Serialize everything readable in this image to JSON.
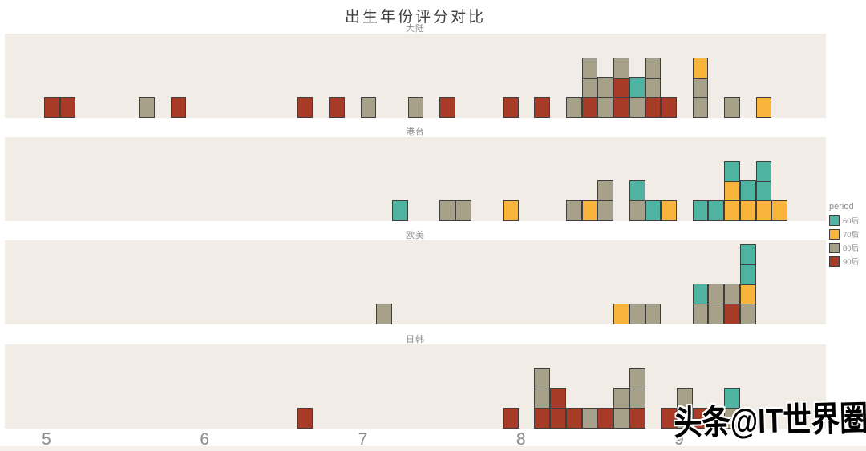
{
  "watermark": {
    "text": "头条@IT世界圈"
  },
  "chart_data": {
    "type": "faceted stacked-square dot-histogram",
    "title": "出生年份评分对比",
    "xlabel": "",
    "ylabel": "",
    "bin_width": 0.1,
    "x_axis": {
      "ticks": [
        5,
        6,
        7,
        8,
        9
      ],
      "range": [
        4.75,
        9.94
      ]
    },
    "grid": false,
    "legend": {
      "title": "period",
      "position": "right",
      "items": [
        {
          "label": "60后",
          "color": "#4eb3a0"
        },
        {
          "label": "70后",
          "color": "#f9b43c"
        },
        {
          "label": "80后",
          "color": "#a8a189"
        },
        {
          "label": "90后",
          "color": "#a83a28"
        }
      ]
    },
    "colors": {
      "panel_bg": "#f2ece7",
      "square_border": "#3f3f3f",
      "facet_label": "#8f8f8f",
      "tick_label": "#8c8c8c",
      "title": "#3f3f3f"
    },
    "facets": [
      {
        "label": "大陆",
        "columns": [
          {
            "x": 5.0,
            "stack": [
              "90后"
            ]
          },
          {
            "x": 5.1,
            "stack": [
              "90后"
            ]
          },
          {
            "x": 5.6,
            "stack": [
              "80后"
            ]
          },
          {
            "x": 5.8,
            "stack": [
              "90后"
            ]
          },
          {
            "x": 6.6,
            "stack": [
              "90后"
            ]
          },
          {
            "x": 6.8,
            "stack": [
              "90后"
            ]
          },
          {
            "x": 7.0,
            "stack": [
              "80后"
            ]
          },
          {
            "x": 7.3,
            "stack": [
              "80后"
            ]
          },
          {
            "x": 7.5,
            "stack": [
              "90后"
            ]
          },
          {
            "x": 7.9,
            "stack": [
              "90后"
            ]
          },
          {
            "x": 8.1,
            "stack": [
              "90后"
            ]
          },
          {
            "x": 8.3,
            "stack": [
              "80后"
            ]
          },
          {
            "x": 8.4,
            "stack": [
              "90后",
              "80后",
              "80后"
            ]
          },
          {
            "x": 8.5,
            "stack": [
              "80后",
              "80后"
            ]
          },
          {
            "x": 8.6,
            "stack": [
              "90后",
              "90后",
              "80后"
            ]
          },
          {
            "x": 8.7,
            "stack": [
              "80后",
              "60后"
            ]
          },
          {
            "x": 8.8,
            "stack": [
              "90后",
              "80后",
              "80后"
            ]
          },
          {
            "x": 8.9,
            "stack": [
              "90后"
            ]
          },
          {
            "x": 9.1,
            "stack": [
              "80后",
              "80后",
              "70后"
            ]
          },
          {
            "x": 9.3,
            "stack": [
              "80后"
            ]
          },
          {
            "x": 9.5,
            "stack": [
              "70后"
            ]
          }
        ]
      },
      {
        "label": "港台",
        "columns": [
          {
            "x": 7.2,
            "stack": [
              "60后"
            ]
          },
          {
            "x": 7.5,
            "stack": [
              "80后"
            ]
          },
          {
            "x": 7.6,
            "stack": [
              "80后"
            ]
          },
          {
            "x": 7.9,
            "stack": [
              "70后"
            ]
          },
          {
            "x": 8.3,
            "stack": [
              "80后"
            ]
          },
          {
            "x": 8.4,
            "stack": [
              "70后"
            ]
          },
          {
            "x": 8.5,
            "stack": [
              "80后",
              "80后"
            ]
          },
          {
            "x": 8.7,
            "stack": [
              "80后",
              "60后"
            ]
          },
          {
            "x": 8.8,
            "stack": [
              "60后"
            ]
          },
          {
            "x": 8.9,
            "stack": [
              "70后"
            ]
          },
          {
            "x": 9.1,
            "stack": [
              "60后"
            ]
          },
          {
            "x": 9.2,
            "stack": [
              "60后"
            ]
          },
          {
            "x": 9.3,
            "stack": [
              "70后",
              "70后",
              "60后"
            ]
          },
          {
            "x": 9.4,
            "stack": [
              "70后",
              "60后"
            ]
          },
          {
            "x": 9.5,
            "stack": [
              "70后",
              "60后",
              "60后"
            ]
          },
          {
            "x": 9.6,
            "stack": [
              "70后"
            ]
          }
        ]
      },
      {
        "label": "欧美",
        "columns": [
          {
            "x": 7.1,
            "stack": [
              "80后"
            ]
          },
          {
            "x": 8.6,
            "stack": [
              "70后"
            ]
          },
          {
            "x": 8.7,
            "stack": [
              "80后"
            ]
          },
          {
            "x": 8.8,
            "stack": [
              "80后"
            ]
          },
          {
            "x": 9.1,
            "stack": [
              "80后",
              "60后"
            ]
          },
          {
            "x": 9.2,
            "stack": [
              "80后",
              "80后"
            ]
          },
          {
            "x": 9.3,
            "stack": [
              "90后",
              "80后"
            ]
          },
          {
            "x": 9.4,
            "stack": [
              "80后",
              "70后",
              "60后",
              "60后"
            ]
          }
        ]
      },
      {
        "label": "日韩",
        "columns": [
          {
            "x": 6.6,
            "stack": [
              "90后"
            ]
          },
          {
            "x": 7.9,
            "stack": [
              "90后"
            ]
          },
          {
            "x": 8.1,
            "stack": [
              "90后",
              "80后",
              "80后"
            ]
          },
          {
            "x": 8.2,
            "stack": [
              "90后",
              "90后"
            ]
          },
          {
            "x": 8.3,
            "stack": [
              "90后"
            ]
          },
          {
            "x": 8.4,
            "stack": [
              "80后"
            ]
          },
          {
            "x": 8.5,
            "stack": [
              "90后"
            ]
          },
          {
            "x": 8.6,
            "stack": [
              "80后",
              "80后"
            ]
          },
          {
            "x": 8.7,
            "stack": [
              "90后",
              "80后",
              "80后"
            ]
          },
          {
            "x": 8.9,
            "stack": [
              "90后"
            ]
          },
          {
            "x": 9.0,
            "stack": [
              "80后",
              "80后"
            ]
          },
          {
            "x": 9.1,
            "stack": [
              "90后"
            ]
          },
          {
            "x": 9.3,
            "stack": [
              "80后",
              "60后"
            ]
          }
        ]
      }
    ]
  }
}
